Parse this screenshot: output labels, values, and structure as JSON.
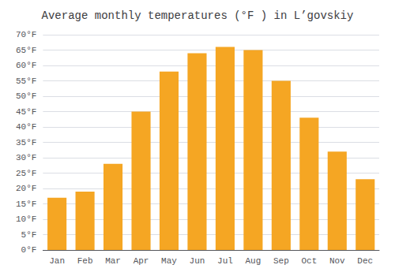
{
  "chart_data": {
    "type": "bar",
    "title": "Average monthly temperatures (°F ) in L’govskiy",
    "categories": [
      "Jan",
      "Feb",
      "Mar",
      "Apr",
      "May",
      "Jun",
      "Jul",
      "Aug",
      "Sep",
      "Oct",
      "Nov",
      "Dec"
    ],
    "values": [
      17,
      19,
      28,
      45,
      58,
      64,
      66,
      65,
      55,
      43,
      32,
      23
    ],
    "color": "#F5A623",
    "ylim": [
      0,
      70
    ],
    "yticks": [
      {
        "value": 0,
        "label": "0°F"
      },
      {
        "value": 5,
        "label": "5°F"
      },
      {
        "value": 10,
        "label": "10°F"
      },
      {
        "value": 15,
        "label": "15°F"
      },
      {
        "value": 20,
        "label": "20°F"
      },
      {
        "value": 25,
        "label": "25°F"
      },
      {
        "value": 30,
        "label": "30°F"
      },
      {
        "value": 35,
        "label": "35°F"
      },
      {
        "value": 40,
        "label": "40°F"
      },
      {
        "value": 45,
        "label": "45°F"
      },
      {
        "value": 50,
        "label": "50°F"
      },
      {
        "value": 55,
        "label": "55°F"
      },
      {
        "value": 60,
        "label": "60°F"
      },
      {
        "value": 65,
        "label": "65°F"
      },
      {
        "value": 70,
        "label": "70°F"
      }
    ],
    "grid": true
  }
}
